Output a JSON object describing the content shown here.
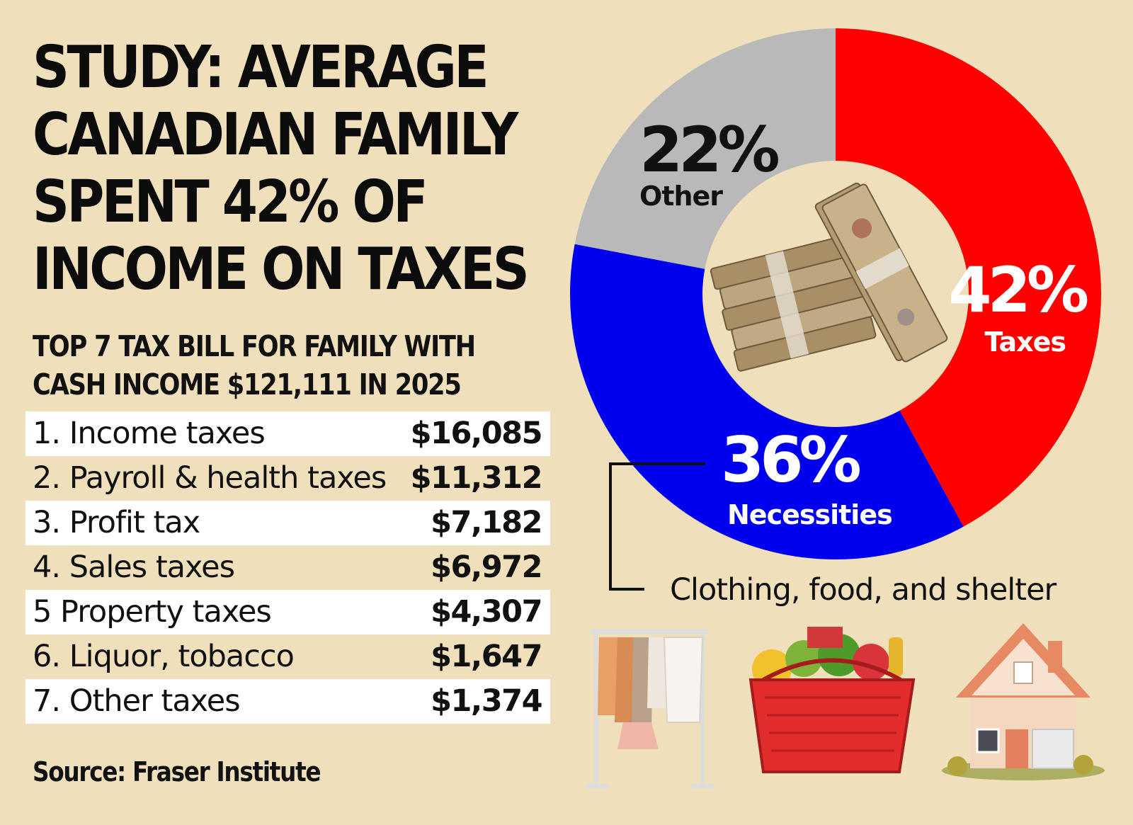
{
  "headline": [
    "STUDY: AVERAGE",
    "CANADIAN FAMILY",
    "SPENT 42% OF",
    "INCOME ON TAXES"
  ],
  "subhead": [
    "TOP 7 TAX BILL FOR FAMILY WITH",
    "CASH INCOME $121,111 IN 2025"
  ],
  "tax_items": [
    {
      "label": "1. Income taxes",
      "amount": "$16,085"
    },
    {
      "label": "2. Payroll & health taxes",
      "amount": "$11,312"
    },
    {
      "label": "3. Profit tax",
      "amount": "$7,182"
    },
    {
      "label": "4. Sales taxes",
      "amount": "$6,972"
    },
    {
      "label": "5 Property taxes",
      "amount": "$4,307"
    },
    {
      "label": "6. Liquor, tobacco",
      "amount": "$1,647"
    },
    {
      "label": "7. Other taxes",
      "amount": "$1,374"
    }
  ],
  "source": "Source: Fraser Institute",
  "necessities_caption": "Clothing, food, and shelter",
  "colors": {
    "background": "#efdfba",
    "taxes": "#ff0000",
    "necessities": "#0000ee",
    "other": "#b9b9b9"
  },
  "chart_data": {
    "type": "pie",
    "variant": "donut",
    "categories": [
      "Taxes",
      "Necessities",
      "Other"
    ],
    "values": [
      42,
      36,
      22
    ],
    "labels": [
      "42%",
      "36%",
      "22%"
    ],
    "colors": [
      "#ff0000",
      "#0000ee",
      "#b9b9b9"
    ]
  }
}
